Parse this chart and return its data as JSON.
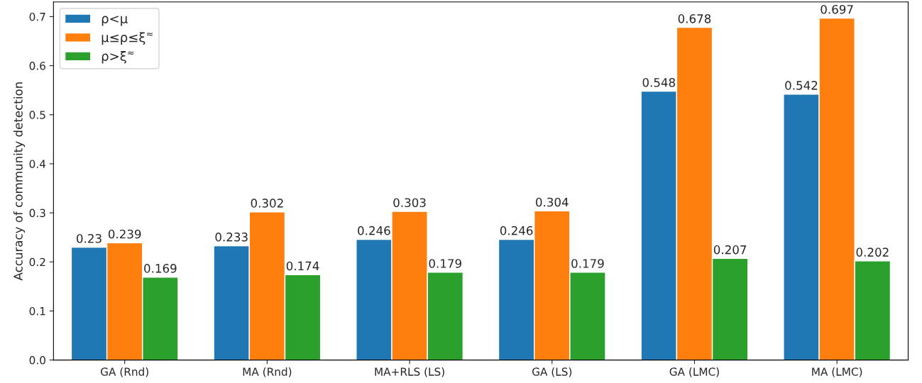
{
  "chart_data": {
    "type": "bar",
    "ylabel": "Accuracy of community detection",
    "categories": [
      "GA (Rnd)",
      "MA (Rnd)",
      "MA+RLS (LS)",
      "GA (LS)",
      "GA (LMC)",
      "MA (LMC)"
    ],
    "series": [
      {
        "name": "ρ<μ",
        "color": "#1f77b4",
        "values": [
          0.23,
          0.233,
          0.246,
          0.246,
          0.548,
          0.542
        ]
      },
      {
        "name": "μ≤ρ≤ξ$^{≈}$",
        "color": "#ff7f0e",
        "values": [
          0.239,
          0.302,
          0.303,
          0.304,
          0.678,
          0.697
        ]
      },
      {
        "name": "ρ>ξ$^{≈}$",
        "color": "#2ca02c",
        "values": [
          0.169,
          0.174,
          0.179,
          0.179,
          0.207,
          0.202
        ]
      }
    ],
    "ylim": [
      0,
      0.73
    ],
    "yticks": [
      {
        "value": 0,
        "label": "0.0"
      },
      0.1,
      0.2,
      0.3,
      0.4,
      0.5,
      0.6,
      0.7
    ],
    "data_labels": true,
    "legend": "top left",
    "grid": false
  }
}
